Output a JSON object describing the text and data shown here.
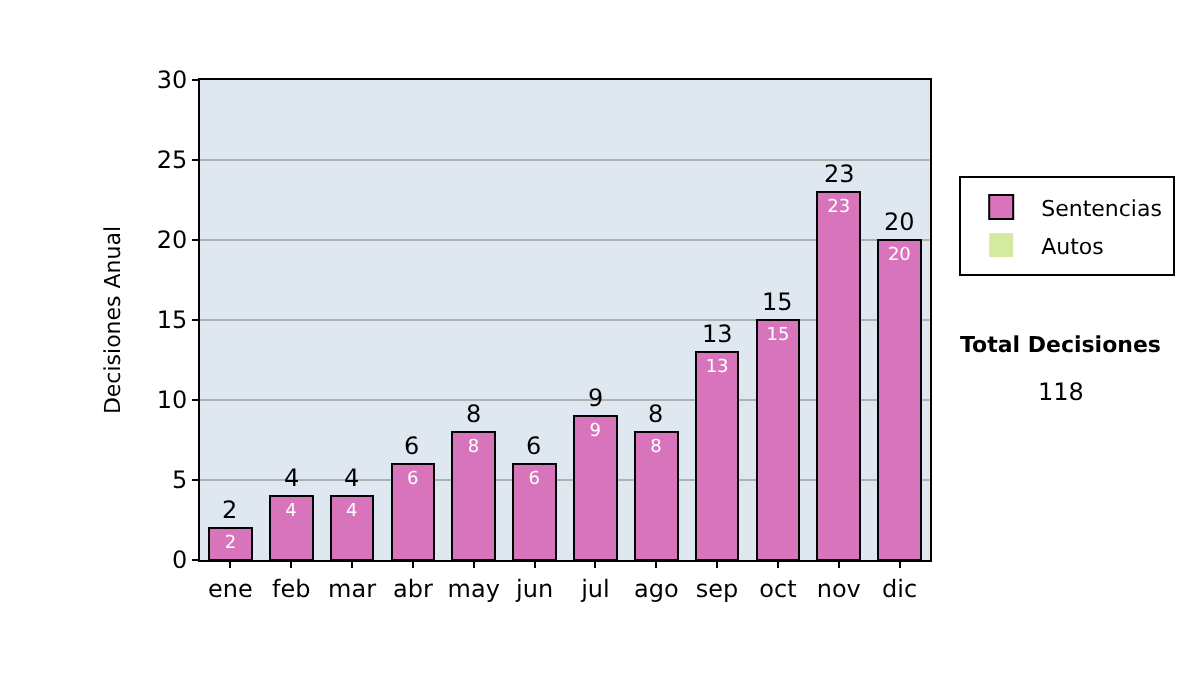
{
  "chart_data": {
    "type": "bar",
    "stacked": true,
    "ylabel": "Decisiones Anual",
    "categories": [
      "ene",
      "feb",
      "mar",
      "abr",
      "may",
      "jun",
      "jul",
      "ago",
      "sep",
      "oct",
      "nov",
      "dic"
    ],
    "series": [
      {
        "name": "Sentencias",
        "color": "#d874bc",
        "values": [
          2,
          4,
          4,
          6,
          8,
          6,
          9,
          8,
          13,
          15,
          23,
          20
        ],
        "value_labels": [
          "2",
          "4",
          "4",
          "6",
          "8",
          "6",
          "9",
          "8",
          "13",
          "15",
          "23",
          "20"
        ]
      },
      {
        "name": "Autos",
        "color": "#d4eaa0",
        "values": [
          0,
          0,
          0,
          0,
          0,
          0,
          0,
          0,
          0,
          0,
          0,
          0
        ]
      }
    ],
    "totals": [
      "2",
      "4",
      "4",
      "6",
      "8",
      "6",
      "9",
      "8",
      "13",
      "15",
      "23",
      "20"
    ],
    "ylim": [
      0,
      30
    ],
    "yticks": [
      0,
      5,
      10,
      15,
      20,
      25,
      30
    ],
    "grid": "y",
    "legend": "right",
    "annotations": [
      "Total Decisiones",
      "118"
    ]
  }
}
